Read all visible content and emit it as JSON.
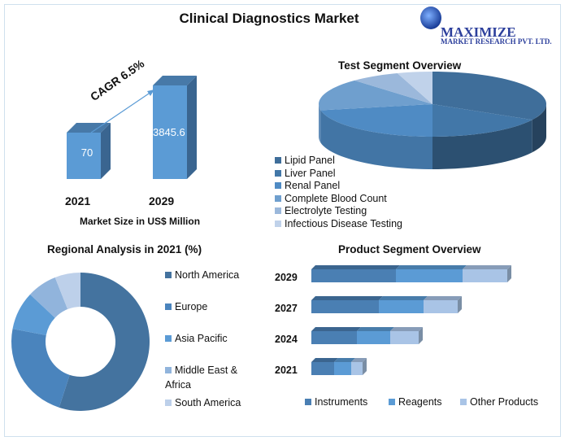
{
  "title": "Clinical Diagnostics Market",
  "logo": {
    "name": "MAXIMIZE",
    "sub": "MARKET RESEARCH PVT. LTD."
  },
  "chart_data": [
    {
      "type": "bar",
      "title": "",
      "categories": [
        "2021",
        "2029"
      ],
      "values": [
        70,
        3845.6
      ],
      "data_labels": [
        "70",
        "3845.6"
      ],
      "annotation": "CAGR 6.5%",
      "xlabel": "Market Size in US$ Million",
      "color": "#5b9bd5"
    },
    {
      "type": "pie",
      "title": "Test Segment Overview",
      "labels": [
        "Lipid Panel",
        "Liver Panel",
        "Renal Panel",
        "Complete Blood Count",
        "Electrolyte Testing",
        "Infectious Disease Testing"
      ],
      "values": [
        33,
        17,
        22,
        16,
        7,
        5
      ],
      "colors": [
        "#3f6e9a",
        "#4277a8",
        "#4f8bc4",
        "#6f9fce",
        "#9bb8db",
        "#c0d2ea"
      ],
      "legend": "bottom-left"
    },
    {
      "type": "pie",
      "subtype": "donut",
      "title": "Regional Analysis in 2021 (%)",
      "labels": [
        "North America",
        "Europe",
        "Asia Pacific",
        "Middle East & Africa",
        "South America"
      ],
      "legend_lines": [
        [
          "North America"
        ],
        [
          "Europe"
        ],
        [
          "Asia Pacific"
        ],
        [
          "Middle East &",
          "Africa"
        ],
        [
          "South America"
        ]
      ],
      "values": [
        55,
        23,
        9,
        7,
        6
      ],
      "colors": [
        "#44739f",
        "#4a84bd",
        "#5b9bd5",
        "#91b4dc",
        "#bdd0ea"
      ],
      "legend": "right"
    },
    {
      "type": "bar",
      "orientation": "horizontal",
      "stacked": true,
      "title": "Product Segment Overview",
      "categories": [
        "2029",
        "2027",
        "2024",
        "2021"
      ],
      "series": [
        {
          "name": "Instruments",
          "values": [
            104,
            83,
            56,
            28
          ],
          "color": "#4a7fb3"
        },
        {
          "name": "Reagents",
          "values": [
            82,
            55,
            41,
            21
          ],
          "color": "#5b9bd5"
        },
        {
          "name": "Other Products",
          "values": [
            55,
            42,
            35,
            14
          ],
          "color": "#a9c4e6"
        }
      ],
      "legend": "bottom"
    }
  ]
}
